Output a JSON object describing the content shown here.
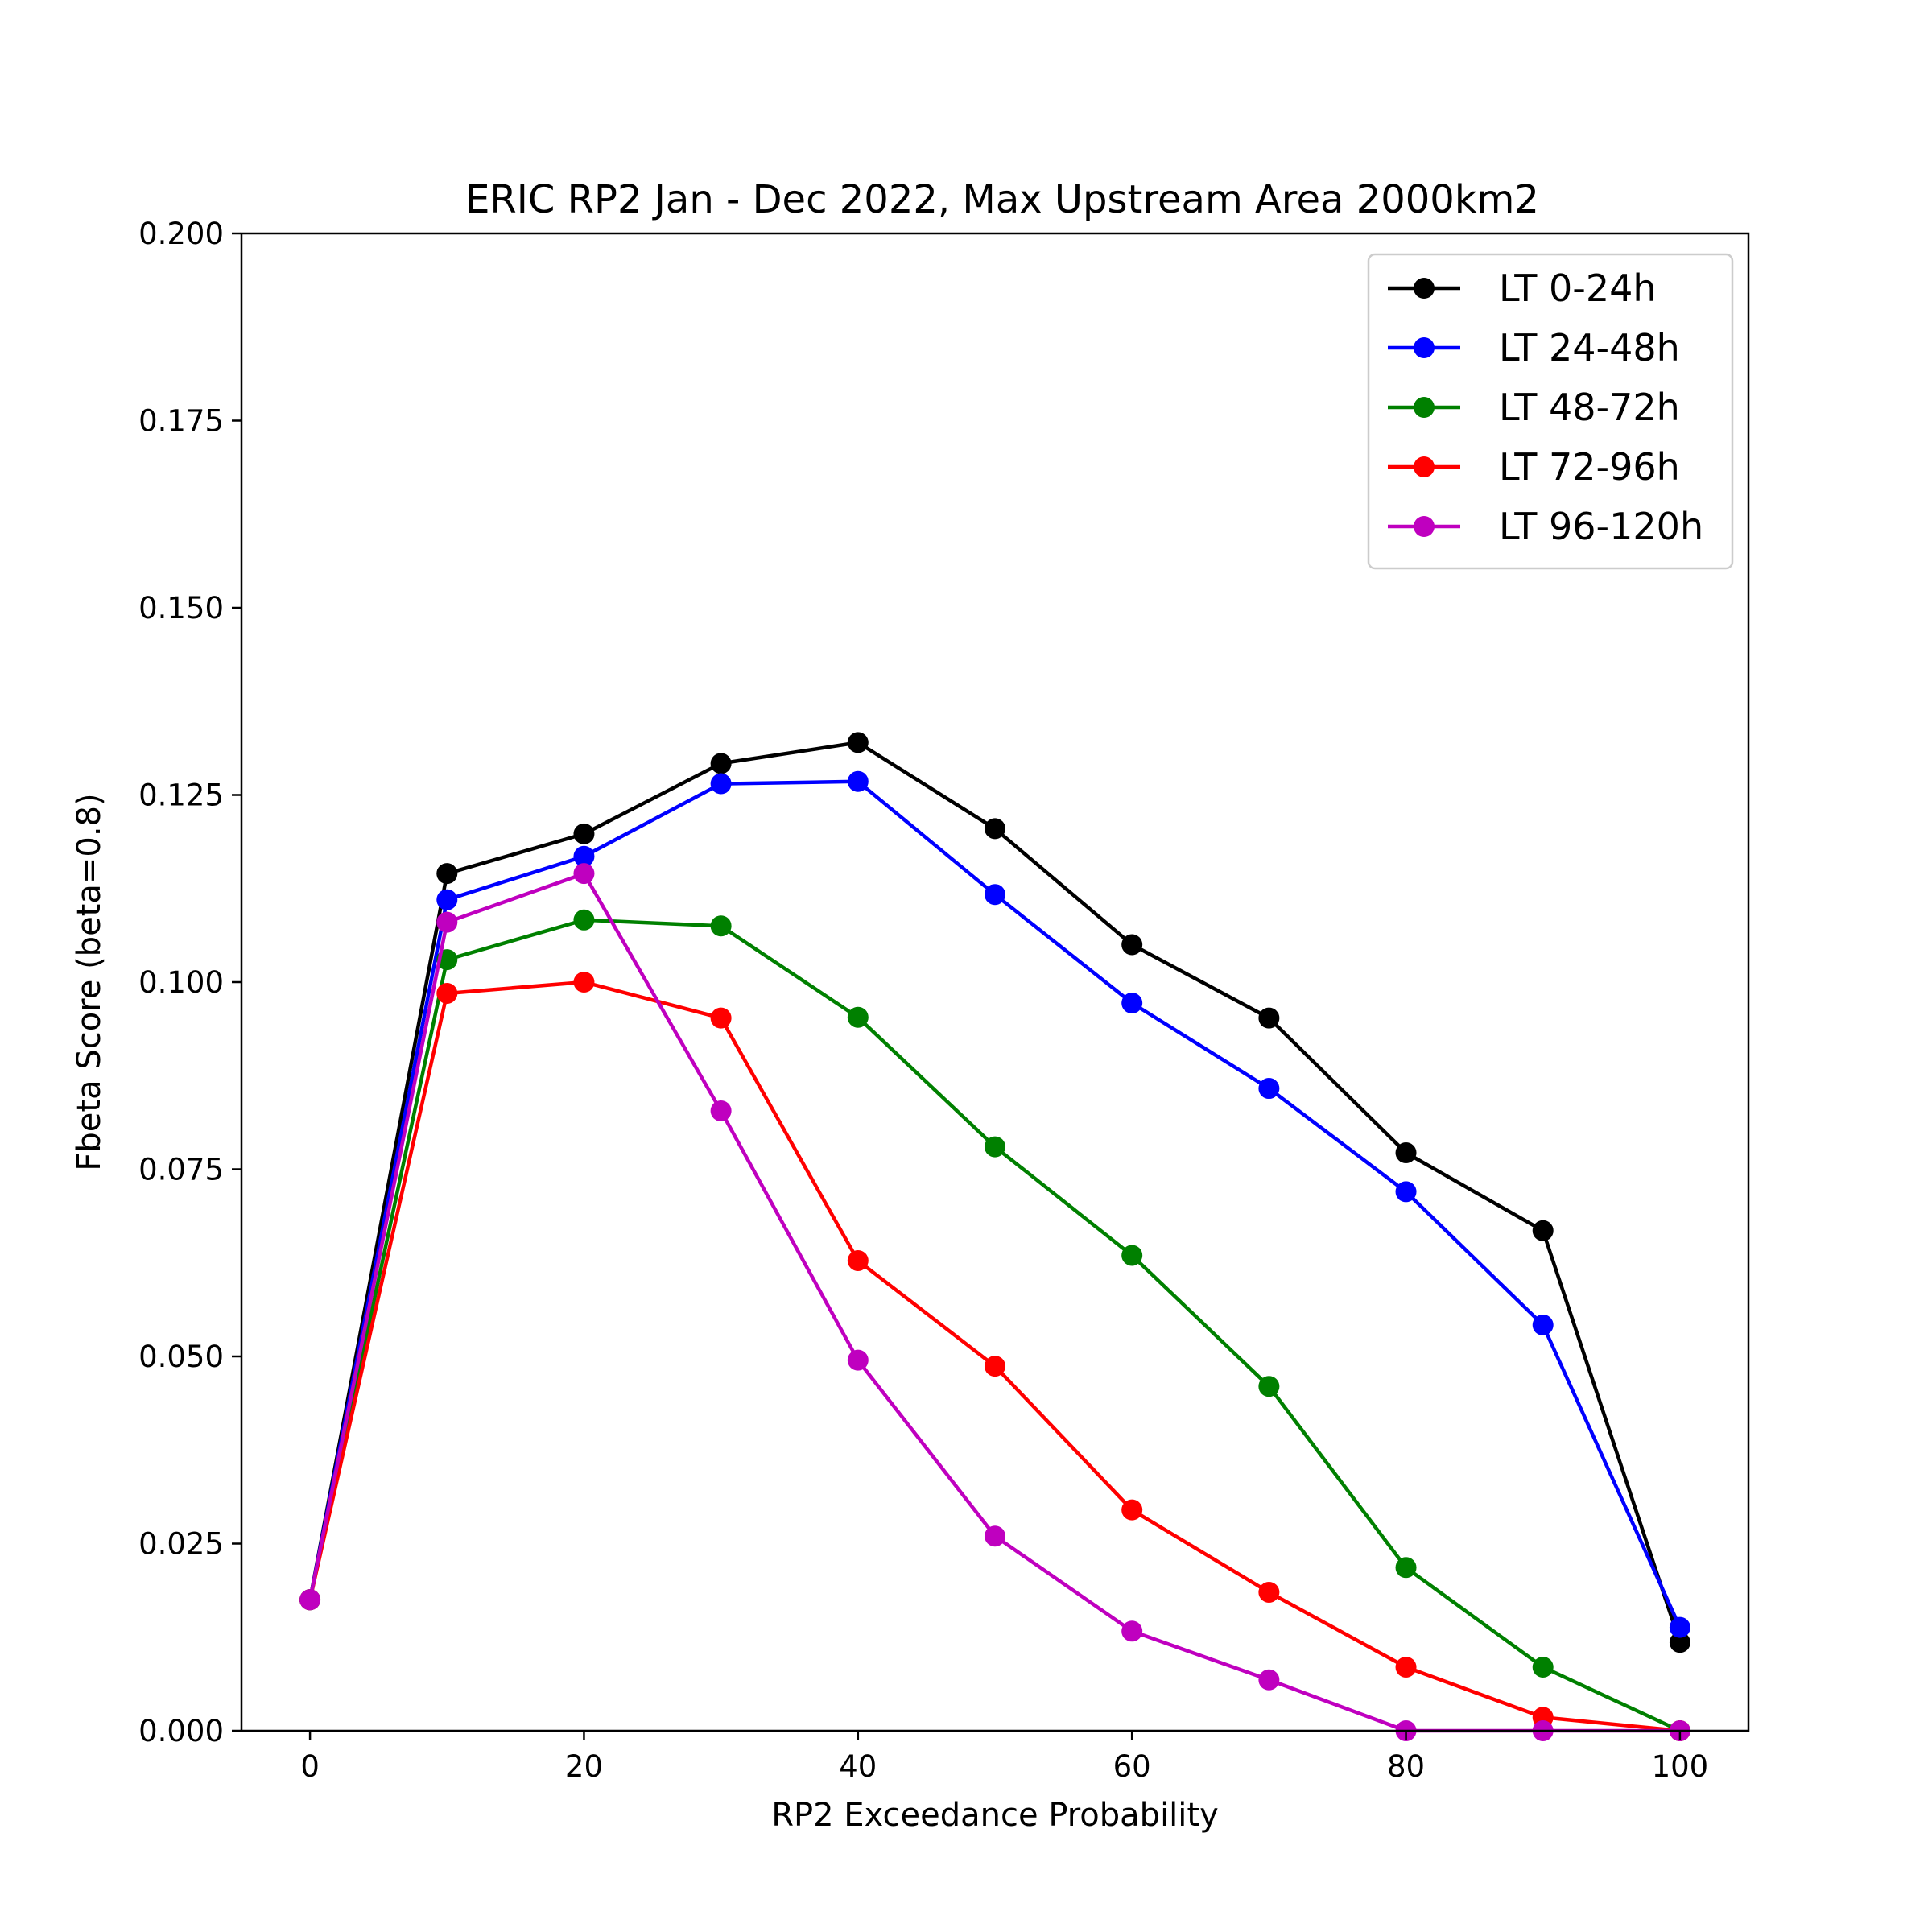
{
  "chart_data": {
    "type": "line",
    "title": "ERIC  RP2 Jan - Dec 2022, Max Upstream Area 2000km2",
    "xlabel": "RP2 Exceedance Probability",
    "ylabel": "Fbeta Score (beta=0.8)",
    "xlim": [
      -5,
      105
    ],
    "ylim": [
      0,
      0.2
    ],
    "x_ticks": [
      0,
      20,
      40,
      60,
      80,
      100
    ],
    "x_tick_labels": [
      "0",
      "20",
      "40",
      "60",
      "80",
      "100"
    ],
    "y_ticks": [
      0,
      0.025,
      0.05,
      0.075,
      0.1,
      0.125,
      0.15,
      0.175,
      0.2
    ],
    "y_tick_labels": [
      "0.000",
      "0.025",
      "0.050",
      "0.075",
      "0.100",
      "0.125",
      "0.150",
      "0.175",
      "0.200"
    ],
    "grid": false,
    "legend_position": "top-right",
    "x": [
      0,
      10,
      20,
      30,
      40,
      50,
      60,
      70,
      80,
      90,
      100
    ],
    "series": [
      {
        "name": "LT 0-24h",
        "color": "#000000",
        "values": [
          0.0175,
          0.1145,
          0.1198,
          0.1292,
          0.132,
          0.1205,
          0.105,
          0.0952,
          0.0772,
          0.0668,
          0.0118
        ]
      },
      {
        "name": "LT 24-48h",
        "color": "#0000ff",
        "values": [
          0.0175,
          0.111,
          0.1168,
          0.1265,
          0.1268,
          0.1117,
          0.0972,
          0.0858,
          0.072,
          0.0542,
          0.0138
        ]
      },
      {
        "name": "LT 48-72h",
        "color": "#008000",
        "values": [
          0.0175,
          0.103,
          0.1083,
          0.1075,
          0.0953,
          0.078,
          0.0635,
          0.046,
          0.0218,
          0.0085,
          0.0
        ]
      },
      {
        "name": "LT 72-96h",
        "color": "#ff0000",
        "values": [
          0.0175,
          0.0985,
          0.1,
          0.0952,
          0.0628,
          0.0487,
          0.0295,
          0.0185,
          0.0085,
          0.0018,
          0.0
        ]
      },
      {
        "name": "LT 96-120h",
        "color": "#bf00bf",
        "values": [
          0.0175,
          0.108,
          0.1145,
          0.0828,
          0.0495,
          0.026,
          0.0133,
          0.0068,
          0.0,
          0.0,
          0.0
        ]
      }
    ]
  }
}
